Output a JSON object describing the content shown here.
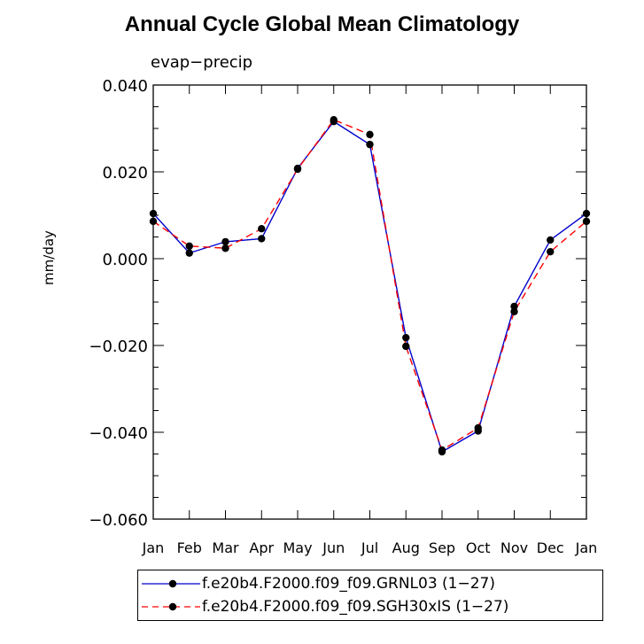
{
  "title": "Annual Cycle Global Mean Climatology",
  "subtitle": "evap−precip",
  "chart_data": {
    "type": "line",
    "ylabel": "mm/day",
    "xlabel": "",
    "categories": [
      "Jan",
      "Feb",
      "Mar",
      "Apr",
      "May",
      "Jun",
      "Jul",
      "Aug",
      "Sep",
      "Oct",
      "Nov",
      "Dec",
      "Jan"
    ],
    "ylim": [
      -0.06,
      0.04
    ],
    "yticks": [
      0.04,
      0.02,
      0.0,
      -0.02,
      -0.04,
      -0.06
    ],
    "ytick_labels": [
      "0.040",
      "0.020",
      "0.000",
      "−0.020",
      "−0.040",
      "−0.060"
    ],
    "series": [
      {
        "name": "f.e20b4.F2000.f09_f09.GRNL03 (1−27)",
        "color": "#0000cc",
        "dash": "solid",
        "values": [
          0.0104,
          0.0013,
          0.0039,
          0.0046,
          0.0208,
          0.0316,
          0.0263,
          -0.0182,
          -0.0445,
          -0.0397,
          -0.011,
          0.0043,
          0.0104
        ]
      },
      {
        "name": "f.e20b4.F2000.f09_f09.SGH30xIS (1−27)",
        "color": "#ff0000",
        "dash": "dashed",
        "values": [
          0.0086,
          0.0029,
          0.0024,
          0.0069,
          0.0206,
          0.032,
          0.0286,
          -0.0202,
          -0.0441,
          -0.039,
          -0.0122,
          0.0016,
          0.0086
        ]
      }
    ]
  }
}
